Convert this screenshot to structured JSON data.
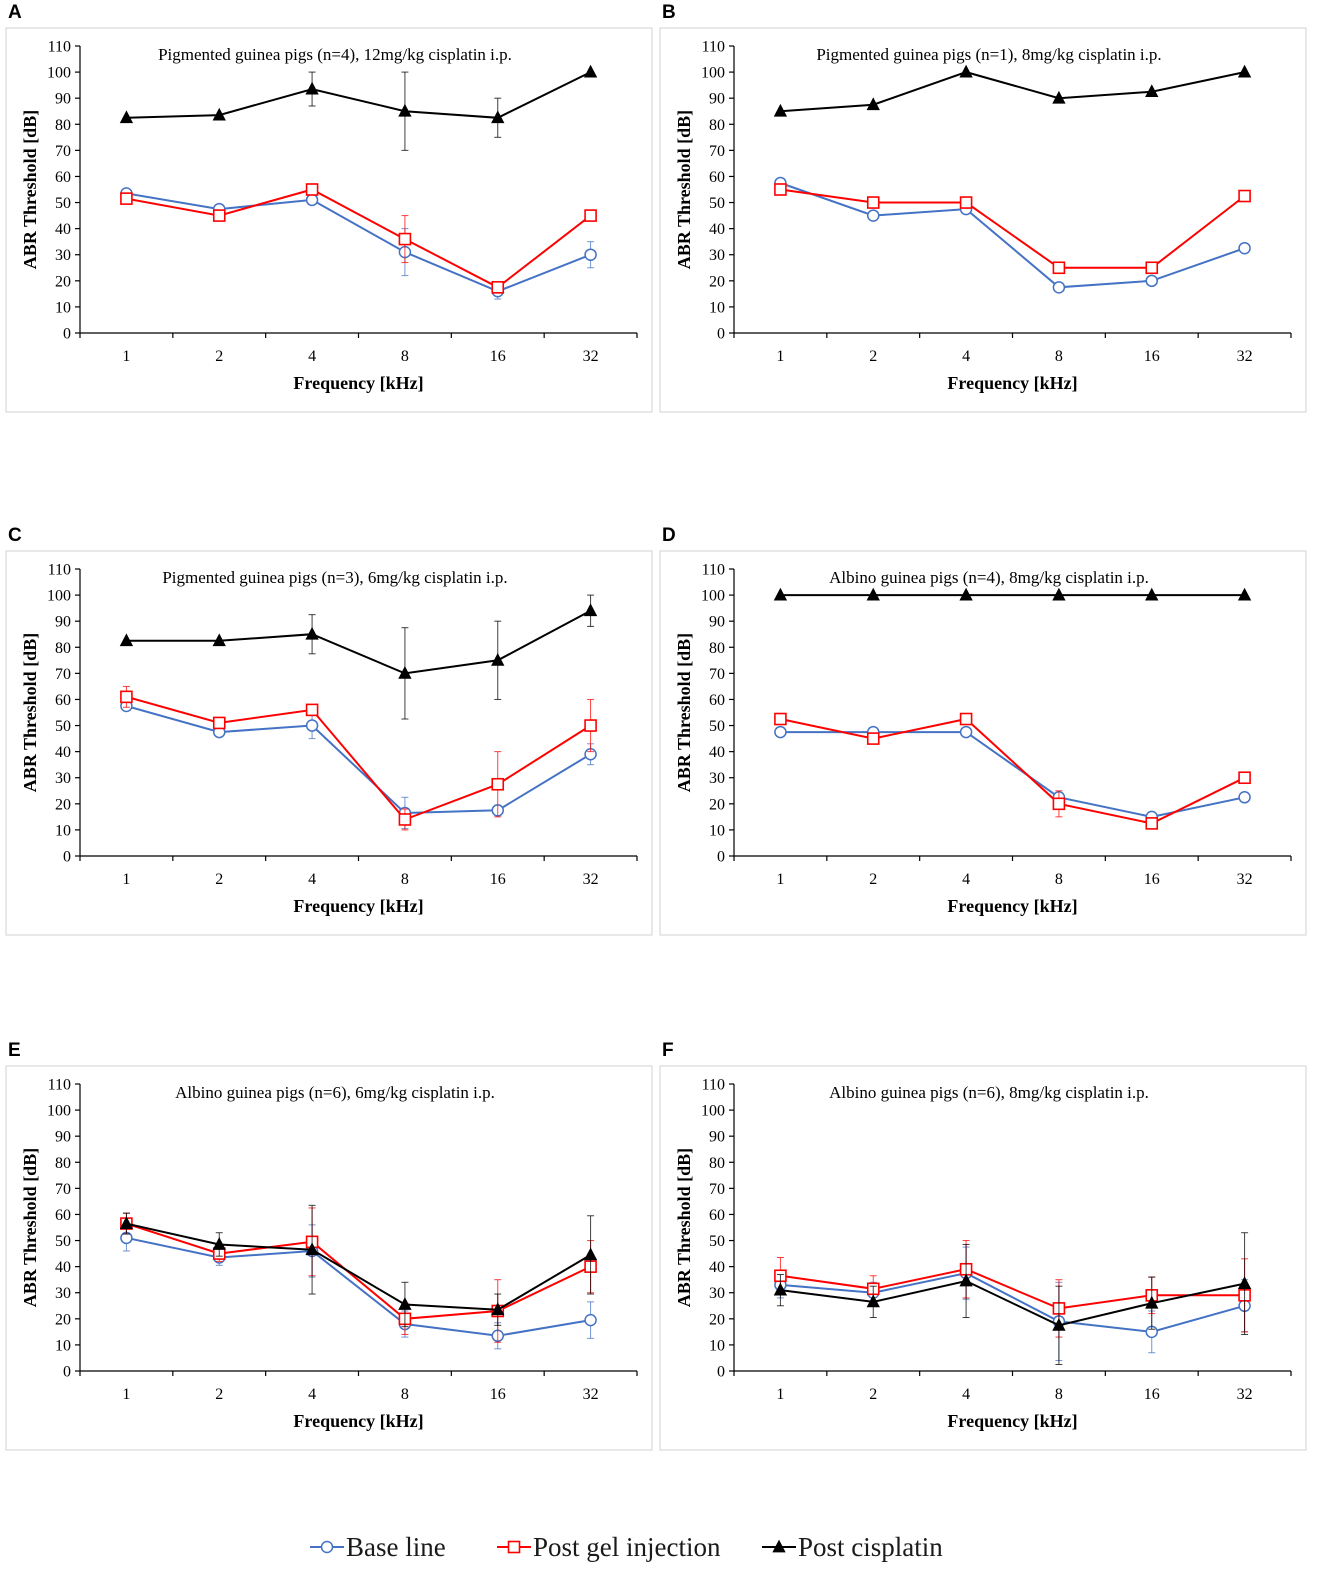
{
  "legend": [
    {
      "key": "baseline",
      "label": "Base line",
      "color": "#4472c4",
      "marker": "circle-open"
    },
    {
      "key": "gel",
      "label": "Post gel injection",
      "color": "#ff0000",
      "marker": "square-open"
    },
    {
      "key": "cisplatin",
      "label": "Post cisplatin",
      "color": "#000000",
      "marker": "triangle-filled"
    }
  ],
  "chart_data": [
    {
      "panel": "A",
      "type": "line",
      "title": "Pigmented guinea pigs (n=4), 12mg/kg cisplatin i.p.",
      "xlabel": "Frequency [kHz]",
      "ylabel": "ABR Threshold [dB]",
      "categories": [
        "1",
        "2",
        "4",
        "8",
        "16",
        "32"
      ],
      "ylim": [
        0,
        110
      ],
      "yticks": [
        0,
        10,
        20,
        30,
        40,
        50,
        60,
        70,
        80,
        90,
        100,
        110
      ],
      "series": [
        {
          "key": "baseline",
          "name": "Base line",
          "values": [
            53.5,
            47.5,
            51,
            31,
            16,
            30
          ],
          "errors": [
            1.5,
            1.5,
            1.5,
            9,
            3,
            5
          ]
        },
        {
          "key": "gel",
          "name": "Post gel injection",
          "values": [
            51.5,
            45,
            55,
            36,
            17.5,
            45
          ],
          "errors": [
            1.5,
            1.5,
            2,
            9,
            2,
            1
          ]
        },
        {
          "key": "cisplatin",
          "name": "Post cisplatin",
          "values": [
            82.5,
            83.5,
            93.5,
            85,
            82.5,
            100
          ],
          "errors": [
            0,
            0,
            6.5,
            15,
            7.5,
            0
          ]
        }
      ]
    },
    {
      "panel": "B",
      "type": "line",
      "title": "Pigmented guinea pigs (n=1), 8mg/kg cisplatin i.p.",
      "xlabel": "Frequency [kHz]",
      "ylabel": "ABR Threshold [dB]",
      "categories": [
        "1",
        "2",
        "4",
        "8",
        "16",
        "32"
      ],
      "ylim": [
        0,
        110
      ],
      "yticks": [
        0,
        10,
        20,
        30,
        40,
        50,
        60,
        70,
        80,
        90,
        100,
        110
      ],
      "series": [
        {
          "key": "baseline",
          "name": "Base line",
          "values": [
            57.5,
            45,
            47.5,
            17.5,
            20,
            32.5
          ],
          "errors": [
            0,
            0,
            0,
            0,
            0,
            0
          ]
        },
        {
          "key": "gel",
          "name": "Post gel injection",
          "values": [
            55,
            50,
            50,
            25,
            25,
            52.5
          ],
          "errors": [
            0,
            0,
            0,
            0,
            0,
            0
          ]
        },
        {
          "key": "cisplatin",
          "name": "Post cisplatin",
          "values": [
            85,
            87.5,
            100,
            90,
            92.5,
            100
          ],
          "errors": [
            0,
            0,
            0,
            0,
            0,
            0
          ]
        }
      ]
    },
    {
      "panel": "C",
      "type": "line",
      "title": "Pigmented guinea pigs (n=3), 6mg/kg cisplatin i.p.",
      "xlabel": "Frequency [kHz]",
      "ylabel": "ABR Threshold [dB]",
      "categories": [
        "1",
        "2",
        "4",
        "8",
        "16",
        "32"
      ],
      "ylim": [
        0,
        110
      ],
      "yticks": [
        0,
        10,
        20,
        30,
        40,
        50,
        60,
        70,
        80,
        90,
        100,
        110
      ],
      "series": [
        {
          "key": "baseline",
          "name": "Base line",
          "values": [
            57.5,
            47.5,
            50,
            16.5,
            17.5,
            39
          ],
          "errors": [
            1.5,
            1,
            5,
            6,
            2,
            4
          ]
        },
        {
          "key": "gel",
          "name": "Post gel injection",
          "values": [
            61,
            51,
            56,
            14,
            27.5,
            50
          ],
          "errors": [
            4,
            1,
            1.5,
            4,
            12.5,
            10
          ]
        },
        {
          "key": "cisplatin",
          "name": "Post cisplatin",
          "values": [
            82.5,
            82.5,
            85,
            70,
            75,
            94
          ],
          "errors": [
            0,
            0,
            7.5,
            17.5,
            15,
            6
          ]
        }
      ]
    },
    {
      "panel": "D",
      "type": "line",
      "title": "Albino guinea pigs (n=4), 8mg/kg cisplatin i.p.",
      "xlabel": "Frequency [kHz]",
      "ylabel": "ABR Threshold [dB]",
      "categories": [
        "1",
        "2",
        "4",
        "8",
        "16",
        "32"
      ],
      "ylim": [
        0,
        110
      ],
      "yticks": [
        0,
        10,
        20,
        30,
        40,
        50,
        60,
        70,
        80,
        90,
        100,
        110
      ],
      "series": [
        {
          "key": "baseline",
          "name": "Base line",
          "values": [
            47.5,
            47.5,
            47.5,
            22.5,
            15,
            22.5
          ],
          "errors": [
            1.5,
            1.5,
            1.5,
            1.5,
            1.5,
            1.5
          ]
        },
        {
          "key": "gel",
          "name": "Post gel injection",
          "values": [
            52.5,
            45,
            52.5,
            20,
            12.5,
            30
          ],
          "errors": [
            1.5,
            1.5,
            1.5,
            5,
            1.5,
            1.5
          ]
        },
        {
          "key": "cisplatin",
          "name": "Post cisplatin",
          "values": [
            100,
            100,
            100,
            100,
            100,
            100
          ],
          "errors": [
            0,
            0,
            0,
            0,
            0,
            0
          ]
        }
      ]
    },
    {
      "panel": "E",
      "type": "line",
      "title": "Albino guinea pigs (n=6), 6mg/kg cisplatin i.p.",
      "xlabel": "Frequency [kHz]",
      "ylabel": "ABR Threshold [dB]",
      "categories": [
        "1",
        "2",
        "4",
        "8",
        "16",
        "32"
      ],
      "ylim": [
        0,
        110
      ],
      "yticks": [
        0,
        10,
        20,
        30,
        40,
        50,
        60,
        70,
        80,
        90,
        100,
        110
      ],
      "series": [
        {
          "key": "baseline",
          "name": "Base line",
          "values": [
            51,
            43.5,
            46,
            18,
            13.5,
            19.5
          ],
          "errors": [
            5,
            3,
            10,
            5,
            5,
            7
          ]
        },
        {
          "key": "gel",
          "name": "Post gel injection",
          "values": [
            56.5,
            45,
            49.5,
            20,
            23,
            40
          ],
          "errors": [
            4,
            3,
            13,
            6,
            12,
            10
          ]
        },
        {
          "key": "cisplatin",
          "name": "Post cisplatin",
          "values": [
            56.5,
            48.5,
            46.5,
            25.5,
            23.5,
            44.5
          ],
          "errors": [
            4,
            4.5,
            17,
            8.5,
            6,
            15
          ]
        }
      ]
    },
    {
      "panel": "F",
      "type": "line",
      "title": "Albino guinea pigs (n=6), 8mg/kg cisplatin i.p.",
      "xlabel": "Frequency [kHz]",
      "ylabel": "ABR Threshold [dB]",
      "categories": [
        "1",
        "2",
        "4",
        "8",
        "16",
        "32"
      ],
      "ylim": [
        0,
        110
      ],
      "yticks": [
        0,
        10,
        20,
        30,
        40,
        50,
        60,
        70,
        80,
        90,
        100,
        110
      ],
      "series": [
        {
          "key": "baseline",
          "name": "Base line",
          "values": [
            33,
            30,
            37.5,
            19,
            15,
            25
          ],
          "errors": [
            5,
            4,
            10,
            15,
            8,
            10
          ]
        },
        {
          "key": "gel",
          "name": "Post gel injection",
          "values": [
            36.5,
            31.5,
            39,
            24,
            29,
            29
          ],
          "errors": [
            7,
            5,
            11,
            11,
            7,
            14
          ]
        },
        {
          "key": "cisplatin",
          "name": "Post cisplatin",
          "values": [
            31,
            26.5,
            34.5,
            17.5,
            26,
            33.5
          ],
          "errors": [
            6,
            6,
            14,
            15,
            10,
            19.5
          ]
        }
      ]
    }
  ]
}
